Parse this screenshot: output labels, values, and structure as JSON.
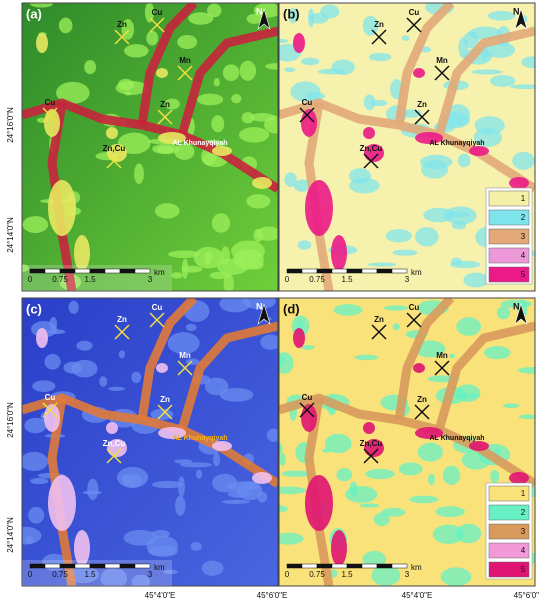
{
  "panels": [
    {
      "label": "(a)",
      "sites": [
        "Zn",
        "Cu",
        "Mn",
        "Cu",
        "Zn",
        "Zn,Cu",
        "AL Khunayqiyah"
      ],
      "north": "N",
      "scale": {
        "ticks": [
          "0",
          "0.75",
          "1.5",
          "3"
        ],
        "unit": "km"
      }
    },
    {
      "label": "(b)",
      "sites": [
        "Zn",
        "Cu",
        "Mn",
        "Cu",
        "Zn",
        "Zn,Cu",
        "AL Khunayqiyah"
      ],
      "north": "N",
      "scale": {
        "ticks": [
          "0",
          "0.75",
          "1.5",
          "3"
        ],
        "unit": "km"
      },
      "legend": [
        {
          "label": "1",
          "color": "#f5f0a8"
        },
        {
          "label": "2",
          "color": "#80e4ec"
        },
        {
          "label": "3",
          "color": "#e2a878"
        },
        {
          "label": "4",
          "color": "#ec98d8"
        },
        {
          "label": "5",
          "color": "#ec1a88"
        }
      ]
    },
    {
      "label": "(c)",
      "sites": [
        "Zn",
        "Cu",
        "Mn",
        "Cu",
        "Zn",
        "Zn,Cu",
        "AL Khunayqiyah"
      ],
      "north": "N",
      "scale": {
        "ticks": [
          "0",
          "0.75",
          "1.5",
          "3"
        ],
        "unit": "km"
      }
    },
    {
      "label": "(d)",
      "sites": [
        "Zn",
        "Cu",
        "Mn",
        "Cu",
        "Zn",
        "Zn,Cu",
        "AL Khunayqiyah"
      ],
      "north": "N",
      "scale": {
        "ticks": [
          "0",
          "0.75",
          "1.5",
          "3"
        ],
        "unit": "km"
      },
      "legend": [
        {
          "label": "1",
          "color": "#fae27a"
        },
        {
          "label": "2",
          "color": "#66f0c4"
        },
        {
          "label": "3",
          "color": "#d89a5c"
        },
        {
          "label": "4",
          "color": "#f29ad8"
        },
        {
          "label": "5",
          "color": "#e01472"
        }
      ]
    }
  ],
  "latitude_labels": [
    "24°16'0\"N",
    "24°14'0\"N"
  ],
  "longitude_labels": [
    "45°4'0\"E",
    "45°6'0\"E"
  ]
}
